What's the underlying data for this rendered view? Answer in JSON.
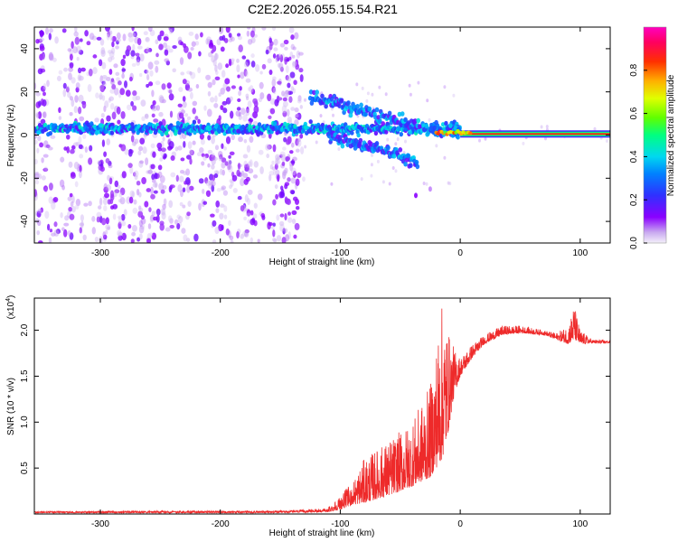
{
  "title": "C2E2.2026.055.15.54.R21",
  "chart_data": [
    {
      "type": "heatmap",
      "name": "spectrogram",
      "xlabel": "Height of straight line (km)",
      "ylabel": "Frequency (Hz)",
      "xlim": [
        -355,
        125
      ],
      "ylim": [
        -50,
        50
      ],
      "xticks": [
        -300,
        -200,
        -100,
        0,
        100
      ],
      "yticks": [
        -40,
        -20,
        0,
        20,
        40
      ],
      "colorbar": {
        "label": "Normalized spectral amplitude",
        "range": [
          0,
          1
        ],
        "ticks": [
          0.0,
          0.2,
          0.4,
          0.6,
          0.8
        ],
        "colors": [
          "#e8e0f8",
          "#7a00ff",
          "#2020ff",
          "#00c8ff",
          "#00ff80",
          "#80ff00",
          "#ffff00",
          "#ff8000",
          "#ff0000",
          "#ff00c0"
        ]
      },
      "features": {
        "main_band_center_hz": 3,
        "main_band_extent_km": [
          -355,
          0
        ],
        "diverging_branch_upper": [
          [
            -125,
            18
          ],
          [
            -100,
            14
          ],
          [
            -75,
            10
          ],
          [
            -50,
            6
          ],
          [
            -30,
            3
          ],
          [
            0,
            1
          ]
        ],
        "diverging_branch_lower": [
          [
            -110,
            0
          ],
          [
            -90,
            -4
          ],
          [
            -70,
            -6
          ],
          [
            -55,
            -8
          ],
          [
            -45,
            -11
          ],
          [
            -35,
            -14
          ]
        ],
        "steady_tone_extent_km": [
          0,
          125
        ],
        "steady_tone_hz": 0.5
      }
    },
    {
      "type": "line",
      "name": "snr",
      "xlabel": "Height of straight line (km)",
      "ylabel": "SNR (10 * v/v)",
      "yscale_label": "(x10",
      "yscale_exp": "4",
      "xlim": [
        -355,
        125
      ],
      "ylim": [
        0,
        2.35
      ],
      "xticks": [
        -300,
        -200,
        -100,
        0,
        100
      ],
      "yticks": [
        0.5,
        1.0,
        1.5,
        2.0
      ],
      "ytick_labels": [
        "0.5",
        "1.0",
        "1.5",
        "2.0"
      ],
      "color": "#ee2a2a",
      "envelope": {
        "x": [
          -355,
          -250,
          -150,
          -110,
          -100,
          -90,
          -80,
          -60,
          -40,
          -25,
          -15,
          -10,
          -5,
          0,
          10,
          20,
          35,
          50,
          70,
          80,
          90,
          95,
          100,
          110,
          125
        ],
        "base": [
          0.01,
          0.01,
          0.01,
          0.02,
          0.05,
          0.1,
          0.12,
          0.2,
          0.3,
          0.4,
          0.6,
          0.9,
          1.3,
          1.5,
          1.7,
          1.85,
          1.95,
          1.97,
          1.95,
          1.9,
          1.85,
          1.9,
          1.85,
          1.86,
          1.86
        ],
        "peak": [
          0.04,
          0.05,
          0.05,
          0.08,
          0.2,
          0.35,
          0.6,
          0.8,
          1.0,
          1.4,
          2.3,
          2.0,
          1.8,
          1.7,
          1.85,
          1.95,
          2.05,
          2.05,
          2.0,
          1.97,
          2.05,
          2.28,
          2.0,
          1.9,
          1.89
        ]
      }
    }
  ]
}
